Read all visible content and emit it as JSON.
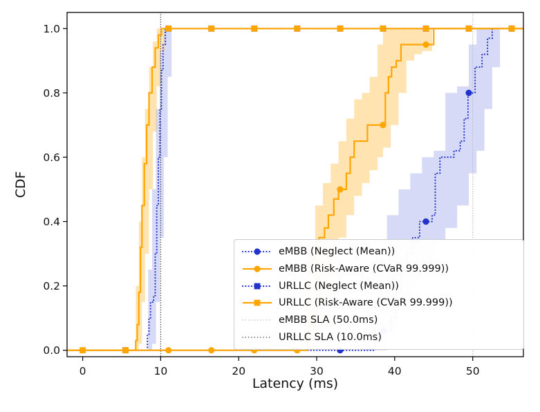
{
  "colors": {
    "blue": "#2233cc",
    "orange": "#ffa500",
    "gray": "#b9b9b9",
    "black": "#3a3a3a",
    "blue_band": "rgba(68,88,220,0.22)",
    "orange_band": "rgba(255,166,0,0.30)",
    "axis": "#000000",
    "legend_border": "#cccccc"
  },
  "chart_data": {
    "type": "line",
    "title": "",
    "xlabel": "Latency (ms)",
    "ylabel": "CDF",
    "xlim": [
      -2,
      56.5
    ],
    "ylim": [
      -0.02,
      1.05
    ],
    "xticks": [
      "0",
      "10",
      "20",
      "30",
      "40",
      "50"
    ],
    "xtick_values": [
      0,
      10,
      20,
      30,
      40,
      50
    ],
    "yticks": [
      "0.0",
      "0.2",
      "0.4",
      "0.6",
      "0.8",
      "1.0"
    ],
    "ytick_values": [
      0,
      0.2,
      0.4,
      0.6,
      0.8,
      1.0
    ],
    "grid": false,
    "legend": {
      "position": "lower right inside",
      "entries": [
        {
          "label": "eMBB (Neglect (Mean))",
          "color": "blue",
          "line": "dotted",
          "marker": "circle"
        },
        {
          "label": "eMBB (Risk-Aware (CVaR 99.999))",
          "color": "orange",
          "line": "solid",
          "marker": "circle"
        },
        {
          "label": "URLLC (Neglect (Mean))",
          "color": "blue",
          "line": "dotted",
          "marker": "square"
        },
        {
          "label": "URLLC (Risk-Aware (CVaR 99.999))",
          "color": "orange",
          "line": "solid",
          "marker": "square"
        },
        {
          "label": "eMBB SLA (50.0ms)",
          "color": "gray",
          "line": "dotted",
          "marker": "none"
        },
        {
          "label": "URLLC SLA (10.0ms)",
          "color": "black",
          "line": "dotted",
          "marker": "none"
        }
      ]
    },
    "vlines": [
      {
        "label": "URLLC SLA (10.0ms)",
        "x": 10.0,
        "color": "black"
      },
      {
        "label": "eMBB SLA (50.0ms)",
        "x": 50.0,
        "color": "gray"
      }
    ],
    "series": [
      {
        "name": "eMBB (Neglect (Mean))",
        "color": "blue",
        "line": "dotted",
        "marker": "circle",
        "points": [
          [
            -2,
            0
          ],
          [
            36.5,
            0
          ],
          [
            37.5,
            0.03
          ],
          [
            38.5,
            0.06
          ],
          [
            39.5,
            0.1
          ],
          [
            40.2,
            0.18
          ],
          [
            40.8,
            0.25
          ],
          [
            41.5,
            0.3
          ],
          [
            42.3,
            0.35
          ],
          [
            43.2,
            0.4
          ],
          [
            44.8,
            0.42
          ],
          [
            45.2,
            0.55
          ],
          [
            45.8,
            0.6
          ],
          [
            47.6,
            0.62
          ],
          [
            48.4,
            0.65
          ],
          [
            48.9,
            0.72
          ],
          [
            49.4,
            0.8
          ],
          [
            50.3,
            0.88
          ],
          [
            51.2,
            0.92
          ],
          [
            51.9,
            0.97
          ],
          [
            52.5,
            1.0
          ],
          [
            56.5,
            1.0
          ]
        ],
        "markers": [
          [
            33,
            0
          ],
          [
            38.5,
            0.06
          ],
          [
            44,
            0.4
          ],
          [
            49.5,
            0.8
          ],
          [
            55,
            1.0
          ]
        ]
      },
      {
        "name": "URLLC (Neglect (Mean))",
        "color": "blue",
        "line": "dotted",
        "marker": "square",
        "points": [
          [
            -2,
            0
          ],
          [
            8.1,
            0
          ],
          [
            8.3,
            0.05
          ],
          [
            8.5,
            0.1
          ],
          [
            8.7,
            0.15
          ],
          [
            9.1,
            0.17
          ],
          [
            9.3,
            0.3
          ],
          [
            9.5,
            0.45
          ],
          [
            9.7,
            0.6
          ],
          [
            9.9,
            0.75
          ],
          [
            10.1,
            0.87
          ],
          [
            10.3,
            0.95
          ],
          [
            10.6,
            1.0
          ],
          [
            56.5,
            1.0
          ]
        ],
        "markers": [
          [
            5.5,
            0
          ],
          [
            11,
            1
          ],
          [
            16.5,
            1
          ],
          [
            22,
            1
          ],
          [
            27.5,
            1
          ],
          [
            33,
            1
          ],
          [
            38.5,
            1
          ],
          [
            44,
            1
          ],
          [
            49.5,
            1
          ],
          [
            55,
            1
          ]
        ]
      },
      {
        "name": "eMBB (Risk-Aware (CVaR 99.999))",
        "color": "orange",
        "line": "solid",
        "marker": "circle",
        "points": [
          [
            -2,
            0
          ],
          [
            28.3,
            0
          ],
          [
            28.8,
            0.05
          ],
          [
            29.3,
            0.1
          ],
          [
            29.8,
            0.3
          ],
          [
            30.3,
            0.35
          ],
          [
            31,
            0.38
          ],
          [
            31.5,
            0.42
          ],
          [
            32.2,
            0.47
          ],
          [
            32.8,
            0.5
          ],
          [
            33.8,
            0.55
          ],
          [
            34.3,
            0.6
          ],
          [
            34.8,
            0.65
          ],
          [
            36.5,
            0.7
          ],
          [
            38.8,
            0.8
          ],
          [
            39.2,
            0.85
          ],
          [
            39.6,
            0.88
          ],
          [
            40.2,
            0.9
          ],
          [
            40.8,
            0.95
          ],
          [
            44.6,
            0.95
          ],
          [
            45,
            1.0
          ],
          [
            56.5,
            1.0
          ]
        ],
        "markers": [
          [
            0,
            0
          ],
          [
            5.5,
            0
          ],
          [
            11,
            0
          ],
          [
            16.5,
            0
          ],
          [
            22,
            0
          ],
          [
            27.5,
            0
          ],
          [
            33,
            0.5
          ],
          [
            38.5,
            0.7
          ],
          [
            44,
            0.95
          ],
          [
            49.5,
            1
          ],
          [
            55,
            1
          ]
        ]
      },
      {
        "name": "URLLC (Risk-Aware (CVaR 99.999))",
        "color": "orange",
        "line": "solid",
        "marker": "square",
        "points": [
          [
            -2,
            0
          ],
          [
            6.5,
            0
          ],
          [
            6.8,
            0.03
          ],
          [
            7,
            0.08
          ],
          [
            7.2,
            0.18
          ],
          [
            7.4,
            0.32
          ],
          [
            7.6,
            0.45
          ],
          [
            7.9,
            0.58
          ],
          [
            8.2,
            0.7
          ],
          [
            8.5,
            0.8
          ],
          [
            8.9,
            0.88
          ],
          [
            9.3,
            0.94
          ],
          [
            9.7,
            0.98
          ],
          [
            10.1,
            1.0
          ],
          [
            56.5,
            1.0
          ]
        ],
        "markers": [
          [
            0,
            0
          ],
          [
            5.5,
            0
          ],
          [
            11,
            1
          ],
          [
            16.5,
            1
          ],
          [
            22,
            1
          ],
          [
            27.5,
            1
          ],
          [
            33,
            1
          ],
          [
            38.5,
            1
          ],
          [
            44,
            1
          ],
          [
            49.5,
            1
          ],
          [
            55,
            1
          ]
        ]
      }
    ],
    "bands": [
      {
        "series": "URLLC (Risk-Aware (CVaR 99.999))",
        "color": "orange",
        "x": [
          6.2,
          6.8,
          7.2,
          7.6,
          8.0,
          8.5,
          9.0,
          9.5,
          10.0,
          10.5
        ],
        "upper": [
          0,
          0.2,
          0.4,
          0.6,
          0.75,
          0.88,
          0.96,
          1.0,
          1.0,
          1.0
        ],
        "lower": [
          0,
          0,
          0.02,
          0.15,
          0.3,
          0.5,
          0.68,
          0.82,
          0.93,
          1.0
        ]
      },
      {
        "series": "URLLC (Neglect (Mean))",
        "color": "blue",
        "x": [
          7.9,
          8.4,
          8.9,
          9.4,
          9.9,
          10.4,
          10.9,
          11.4
        ],
        "upper": [
          0,
          0.25,
          0.5,
          0.75,
          0.93,
          1.0,
          1.0,
          1.0
        ],
        "lower": [
          0,
          0,
          0.02,
          0.15,
          0.35,
          0.6,
          0.85,
          1.0
        ]
      },
      {
        "series": "eMBB (Risk-Aware (CVaR 99.999))",
        "color": "orange",
        "x": [
          27.8,
          28.8,
          29.8,
          30.8,
          31.8,
          32.8,
          33.8,
          34.8,
          35.8,
          36.8,
          37.8,
          38.5,
          39.5,
          40.5,
          41.5,
          42.5,
          43.5,
          44.8
        ],
        "upper": [
          0,
          0.32,
          0.45,
          0.52,
          0.58,
          0.65,
          0.72,
          0.78,
          0.8,
          0.85,
          0.95,
          1.0,
          1.0,
          1.0,
          1.0,
          1.0,
          1.0,
          1.0
        ],
        "lower": [
          0,
          0,
          0.05,
          0.18,
          0.28,
          0.35,
          0.42,
          0.48,
          0.52,
          0.56,
          0.6,
          0.63,
          0.7,
          0.8,
          0.9,
          0.92,
          0.93,
          1.0
        ]
      },
      {
        "series": "eMBB (Neglect (Mean))",
        "color": "blue",
        "x": [
          34.5,
          36,
          37.5,
          39,
          40.5,
          42,
          43.5,
          45,
          46.5,
          48,
          49.5,
          50.5,
          51.5,
          52.5,
          53.5
        ],
        "upper": [
          0,
          0.12,
          0.3,
          0.42,
          0.5,
          0.55,
          0.6,
          0.62,
          0.8,
          0.82,
          0.95,
          1.0,
          1.0,
          1.0,
          1.0
        ],
        "lower": [
          0,
          0,
          0,
          0.05,
          0.12,
          0.2,
          0.28,
          0.33,
          0.38,
          0.45,
          0.55,
          0.62,
          0.75,
          0.88,
          1.0
        ]
      }
    ]
  }
}
